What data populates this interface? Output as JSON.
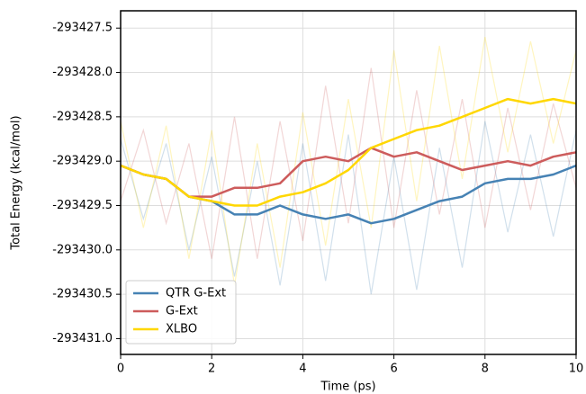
{
  "chart_data": {
    "type": "line",
    "xlabel": "Time (ps)",
    "ylabel": "Total Energy (kcal/mol)",
    "x": [
      0,
      0.5,
      1,
      1.5,
      2,
      2.5,
      3,
      3.5,
      4,
      4.5,
      5,
      5.5,
      6,
      6.5,
      7,
      7.5,
      8,
      8.5,
      9,
      9.5,
      10
    ],
    "xlim": [
      0,
      10
    ],
    "xticks": [
      0,
      2,
      4,
      6,
      8,
      10
    ],
    "ylim": [
      -293431.178,
      -293427.305
    ],
    "yticks": [
      {
        "value": -293431.0,
        "label": "-293431.0"
      },
      -293430.5,
      {
        "value": -293430.0,
        "label": "-293430.0"
      },
      -293429.5,
      {
        "value": -293429.0,
        "label": "-293429.0"
      },
      -293428.5,
      {
        "value": -293428.0,
        "label": "-293428.0"
      },
      -293427.5
    ],
    "grid": true,
    "legend": "lower left",
    "series": [
      {
        "name": "QTR G-Ext",
        "color": "#4682b4",
        "values": [
          -293429.05,
          -293429.15,
          -293429.2,
          -293429.4,
          -293429.45,
          -293429.6,
          -293429.6,
          -293429.5,
          -293429.6,
          -293429.65,
          -293429.6,
          -293429.7,
          -293429.65,
          -293429.55,
          -293429.45,
          -293429.4,
          -293429.25,
          -293429.2,
          -293429.2,
          -293429.15,
          -293429.05
        ],
        "raw_values": [
          -293428.75,
          -293429.65,
          -293428.8,
          -293430.0,
          -293428.95,
          -293430.3,
          -293429.0,
          -293430.4,
          -293428.8,
          -293430.35,
          -293428.7,
          -293430.5,
          -293428.95,
          -293430.45,
          -293428.85,
          -293430.2,
          -293428.55,
          -293429.8,
          -293428.7,
          -293429.85,
          -293428.65
        ]
      },
      {
        "name": "G-Ext",
        "color": "#cd5c5c",
        "values": [
          -293429.05,
          -293429.15,
          -293429.2,
          -293429.4,
          -293429.4,
          -293429.3,
          -293429.3,
          -293429.25,
          -293429.0,
          -293428.95,
          -293429.0,
          -293428.85,
          -293428.95,
          -293428.9,
          -293429.0,
          -293429.1,
          -293429.05,
          -293429.0,
          -293429.05,
          -293428.95,
          -293428.9
        ],
        "raw_values": [
          -293429.45,
          -293428.65,
          -293429.7,
          -293428.8,
          -293430.1,
          -293428.5,
          -293430.1,
          -293428.55,
          -293429.9,
          -293428.15,
          -293429.7,
          -293427.95,
          -293429.75,
          -293428.2,
          -293429.6,
          -293428.3,
          -293429.75,
          -293428.4,
          -293429.55,
          -293428.35,
          -293429.3
        ]
      },
      {
        "name": "XLBO",
        "color": "#ffd700",
        "values": [
          -293429.05,
          -293429.15,
          -293429.2,
          -293429.4,
          -293429.45,
          -293429.5,
          -293429.5,
          -293429.4,
          -293429.35,
          -293429.25,
          -293429.1,
          -293428.85,
          -293428.75,
          -293428.65,
          -293428.6,
          -293428.5,
          -293428.4,
          -293428.3,
          -293428.35,
          -293428.3,
          -293428.35
        ],
        "raw_values": [
          -293428.55,
          -293429.75,
          -293428.6,
          -293430.1,
          -293428.65,
          -293430.4,
          -293428.8,
          -293430.2,
          -293428.45,
          -293429.95,
          -293428.3,
          -293429.75,
          -293427.75,
          -293429.45,
          -293427.7,
          -293429.2,
          -293427.6,
          -293428.9,
          -293427.65,
          -293428.8,
          -293427.75
        ]
      }
    ]
  }
}
